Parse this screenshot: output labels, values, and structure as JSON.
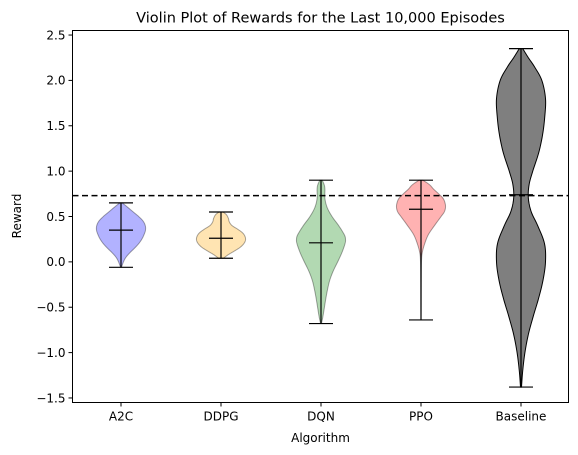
{
  "chart_data": {
    "type": "violin",
    "title": "Violin Plot of Rewards for the Last 10,000 Episodes",
    "xlabel": "Algorithm",
    "ylabel": "Reward",
    "ylim": [
      -1.55,
      2.55
    ],
    "yticks": [
      -1.5,
      -1.0,
      -0.5,
      0.0,
      0.5,
      1.0,
      1.5,
      2.0,
      2.5
    ],
    "ytick_labels": [
      "−1.5",
      "−1.0",
      "−0.5",
      "0.0",
      "0.5",
      "1.0",
      "1.5",
      "2.0",
      "2.5"
    ],
    "categories": [
      "A2C",
      "DDPG",
      "DQN",
      "PPO",
      "Baseline"
    ],
    "reference_line": {
      "y": 0.73,
      "style": "dashed",
      "color": "#000000"
    },
    "series": [
      {
        "category": "A2C",
        "color": "#0000ff",
        "fill_alpha": 0.3,
        "min": -0.06,
        "max": 0.65,
        "median": 0.35,
        "density": [
          [
            -0.06,
            0.02
          ],
          [
            0.0,
            0.1
          ],
          [
            0.05,
            0.2
          ],
          [
            0.1,
            0.36
          ],
          [
            0.15,
            0.55
          ],
          [
            0.2,
            0.72
          ],
          [
            0.25,
            0.85
          ],
          [
            0.3,
            0.94
          ],
          [
            0.35,
            1.0
          ],
          [
            0.4,
            0.99
          ],
          [
            0.45,
            0.9
          ],
          [
            0.5,
            0.72
          ],
          [
            0.55,
            0.5
          ],
          [
            0.6,
            0.28
          ],
          [
            0.65,
            0.05
          ]
        ]
      },
      {
        "category": "DDPG",
        "color": "#ffa500",
        "fill_alpha": 0.3,
        "min": 0.04,
        "max": 0.55,
        "median": 0.26,
        "density": [
          [
            0.04,
            0.1
          ],
          [
            0.08,
            0.3
          ],
          [
            0.12,
            0.55
          ],
          [
            0.16,
            0.78
          ],
          [
            0.2,
            0.93
          ],
          [
            0.24,
            1.0
          ],
          [
            0.28,
            0.98
          ],
          [
            0.32,
            0.88
          ],
          [
            0.36,
            0.68
          ],
          [
            0.4,
            0.45
          ],
          [
            0.44,
            0.34
          ],
          [
            0.48,
            0.3
          ],
          [
            0.52,
            0.22
          ],
          [
            0.55,
            0.08
          ]
        ]
      },
      {
        "category": "DQN",
        "color": "#008000",
        "fill_alpha": 0.3,
        "min": -0.68,
        "max": 0.9,
        "median": 0.21,
        "density": [
          [
            -0.68,
            0.02
          ],
          [
            -0.6,
            0.08
          ],
          [
            -0.5,
            0.14
          ],
          [
            -0.4,
            0.2
          ],
          [
            -0.3,
            0.27
          ],
          [
            -0.2,
            0.36
          ],
          [
            -0.1,
            0.5
          ],
          [
            0.0,
            0.68
          ],
          [
            0.1,
            0.85
          ],
          [
            0.2,
            0.98
          ],
          [
            0.25,
            1.0
          ],
          [
            0.3,
            0.95
          ],
          [
            0.4,
            0.72
          ],
          [
            0.5,
            0.45
          ],
          [
            0.6,
            0.25
          ],
          [
            0.7,
            0.16
          ],
          [
            0.8,
            0.16
          ],
          [
            0.85,
            0.13
          ],
          [
            0.9,
            0.05
          ]
        ]
      },
      {
        "category": "PPO",
        "color": "#ff0000",
        "fill_alpha": 0.3,
        "min": -0.64,
        "max": 0.9,
        "median": 0.58,
        "density": [
          [
            -0.64,
            0.0
          ],
          [
            -0.5,
            0.005
          ],
          [
            -0.2,
            0.01
          ],
          [
            0.0,
            0.02
          ],
          [
            0.1,
            0.05
          ],
          [
            0.2,
            0.15
          ],
          [
            0.3,
            0.3
          ],
          [
            0.4,
            0.55
          ],
          [
            0.5,
            0.82
          ],
          [
            0.55,
            0.95
          ],
          [
            0.6,
            1.0
          ],
          [
            0.65,
            0.98
          ],
          [
            0.7,
            0.9
          ],
          [
            0.75,
            0.72
          ],
          [
            0.8,
            0.52
          ],
          [
            0.85,
            0.35
          ],
          [
            0.9,
            0.08
          ]
        ]
      },
      {
        "category": "Baseline",
        "color": "#000000",
        "fill_alpha": 0.5,
        "min": -1.38,
        "max": 2.35,
        "median": 0.74,
        "density": [
          [
            -1.38,
            0.02
          ],
          [
            -1.2,
            0.07
          ],
          [
            -1.0,
            0.16
          ],
          [
            -0.8,
            0.3
          ],
          [
            -0.6,
            0.5
          ],
          [
            -0.4,
            0.72
          ],
          [
            -0.2,
            0.9
          ],
          [
            0.0,
            1.0
          ],
          [
            0.2,
            0.96
          ],
          [
            0.4,
            0.68
          ],
          [
            0.55,
            0.42
          ],
          [
            0.7,
            0.3
          ],
          [
            0.85,
            0.33
          ],
          [
            1.0,
            0.48
          ],
          [
            1.2,
            0.72
          ],
          [
            1.4,
            0.88
          ],
          [
            1.6,
            0.97
          ],
          [
            1.8,
            1.0
          ],
          [
            2.0,
            0.85
          ],
          [
            2.15,
            0.55
          ],
          [
            2.25,
            0.3
          ],
          [
            2.35,
            0.07
          ]
        ]
      }
    ]
  }
}
